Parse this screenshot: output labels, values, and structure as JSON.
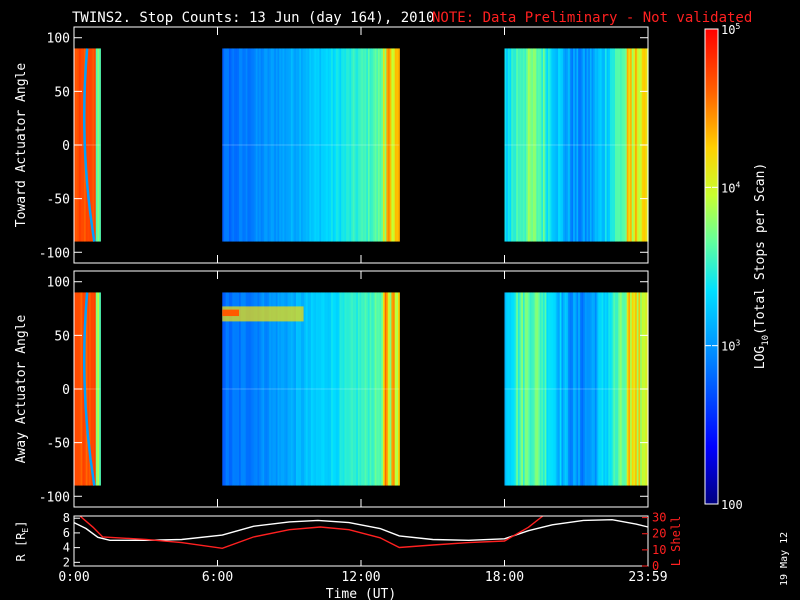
{
  "title": {
    "main": "TWINS2. Stop Counts: 13 Jun (day 164), 2010",
    "note": "NOTE: Data Preliminary - Not validated",
    "note_color": "#ff2020"
  },
  "side_stamp": "19 May 12",
  "colorbar": {
    "label_prefix": "LOG",
    "label_sub": "10",
    "label_suffix": "(Total Stops per Scan)",
    "ticks": [
      {
        "base": "10",
        "exp": "5"
      },
      {
        "base": "10",
        "exp": "4"
      },
      {
        "base": "10",
        "exp": "3"
      },
      {
        "base": "100",
        "exp": ""
      }
    ]
  },
  "chart_data": [
    {
      "type": "heatmap",
      "ylabel": "Toward Actuator Angle",
      "ylim": [
        -110,
        110
      ],
      "yticks": [
        "100",
        "50",
        "0",
        "-50",
        "-100"
      ],
      "x_range_hours": [
        0,
        24
      ],
      "data_y_range": [
        -90,
        90
      ],
      "color_scale": "log10",
      "color_range": [
        100,
        100000
      ],
      "segments": [
        {
          "start_hour": 0.0,
          "end_hour": 1.1
        },
        {
          "start_hour": 6.2,
          "end_hour": 13.6
        },
        {
          "start_hour": 18.0,
          "end_hour": 24.0
        }
      ]
    },
    {
      "type": "heatmap",
      "ylabel": "Away Actuator Angle",
      "ylim": [
        -110,
        110
      ],
      "yticks": [
        "100",
        "50",
        "0",
        "-50",
        "-100"
      ],
      "x_range_hours": [
        0,
        24
      ],
      "data_y_range": [
        -90,
        90
      ],
      "color_scale": "log10",
      "color_range": [
        100,
        100000
      ],
      "segments": [
        {
          "start_hour": 0.0,
          "end_hour": 1.1
        },
        {
          "start_hour": 6.2,
          "end_hour": 13.6
        },
        {
          "start_hour": 18.0,
          "end_hour": 24.0
        }
      ]
    },
    {
      "type": "line",
      "xlabel": "Time (UT)",
      "ylabel_left": "R [R",
      "ylabel_left_sub": "E",
      "ylabel_left_close": "]",
      "ylabel_right": "L Shell",
      "xtick_labels": [
        "0:00",
        "6:00",
        "12:00",
        "18:00",
        "23:59"
      ],
      "xtick_hours": [
        0,
        6,
        12,
        18,
        24
      ],
      "left_yticks": [
        "8",
        "6",
        "4",
        "2"
      ],
      "right_yticks": [
        "30",
        "20",
        "10",
        "0"
      ],
      "ylim_left": [
        1.5,
        8.3
      ],
      "ylim_right": [
        0,
        31
      ],
      "series": [
        {
          "name": "R",
          "color": "#ffffff",
          "axis": "left",
          "x": [
            0,
            0.5,
            1,
            1.5,
            3,
            4.5,
            6.2,
            7.5,
            9,
            10.2,
            11.5,
            12.8,
            13.6,
            15,
            16.5,
            18,
            19,
            20,
            21.3,
            22.5,
            23.5,
            24
          ],
          "y": [
            7.4,
            6.6,
            5.4,
            5.0,
            5.0,
            5.1,
            5.7,
            6.9,
            7.5,
            7.7,
            7.4,
            6.6,
            5.6,
            5.1,
            5.0,
            5.2,
            6.3,
            7.1,
            7.7,
            7.8,
            7.2,
            6.8
          ]
        },
        {
          "name": "L Shell",
          "color": "#ff2020",
          "axis": "right",
          "x": [
            0.25,
            0.8,
            1.2,
            3,
            4.5,
            6.2,
            7.5,
            9,
            10.3,
            11.5,
            12.8,
            13.6,
            15,
            16.5,
            18,
            19,
            19.6
          ],
          "y": [
            31,
            24,
            18,
            16.5,
            14.5,
            11,
            18,
            22.5,
            24.2,
            22.5,
            17.5,
            11.5,
            13,
            14.5,
            15.5,
            24,
            31
          ]
        }
      ]
    }
  ]
}
